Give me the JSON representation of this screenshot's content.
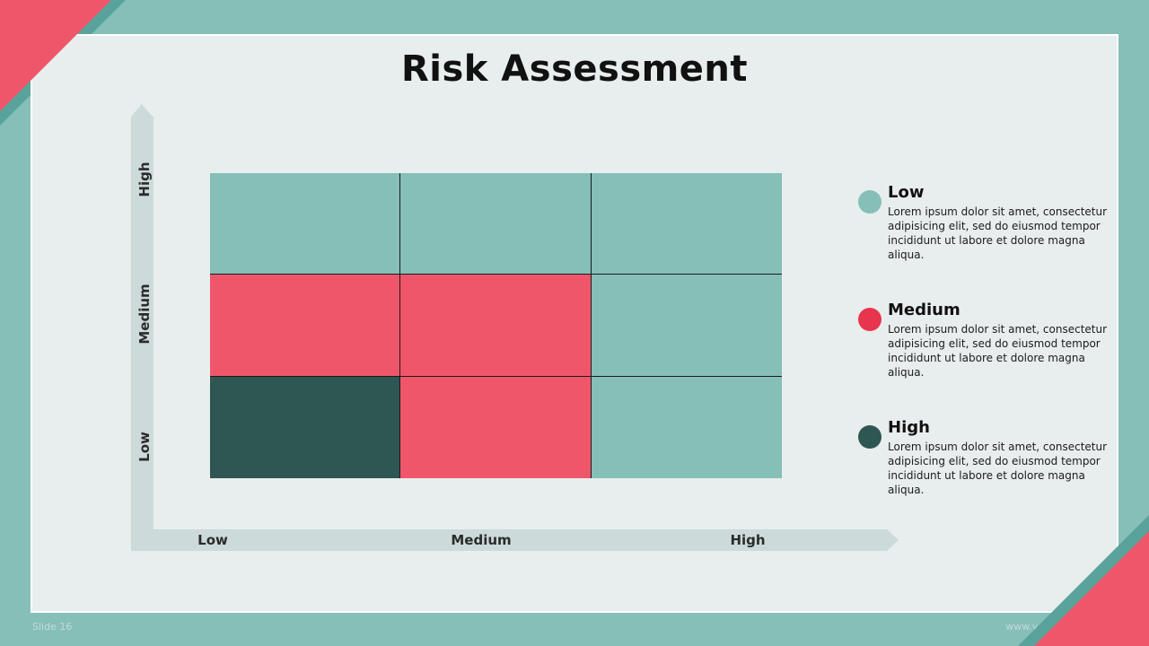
{
  "slide": {
    "title": "Risk Assessment",
    "slide_number": "Slide 16",
    "website": "www.yourwebsite.com"
  },
  "axes": {
    "y_labels": [
      "High",
      "Medium",
      "Low"
    ],
    "x_labels": [
      "Low",
      "Medium",
      "High"
    ]
  },
  "colors": {
    "low": "#85bfb8",
    "medium": "#f0566a",
    "high": "#2e5652",
    "accent": "#f0566a",
    "background": "#85bfb8"
  },
  "matrix": {
    "rows": [
      [
        "low",
        "low",
        "low"
      ],
      [
        "medium",
        "medium",
        "low"
      ],
      [
        "high",
        "medium",
        "low"
      ]
    ]
  },
  "legend": [
    {
      "label": "Low",
      "color": "#85bfb8",
      "description": "Lorem ipsum dolor sit amet, consectetur adipisicing elit, sed do eiusmod tempor incididunt ut labore et dolore magna aliqua."
    },
    {
      "label": "Medium",
      "color": "#e8354e",
      "description": "Lorem ipsum dolor sit amet, consectetur adipisicing elit, sed do eiusmod tempor incididunt ut labore et dolore magna aliqua."
    },
    {
      "label": "High",
      "color": "#2e5652",
      "description": "Lorem ipsum dolor sit amet, consectetur adipisicing elit, sed do eiusmod tempor incididunt ut labore et dolore magna aliqua."
    }
  ]
}
